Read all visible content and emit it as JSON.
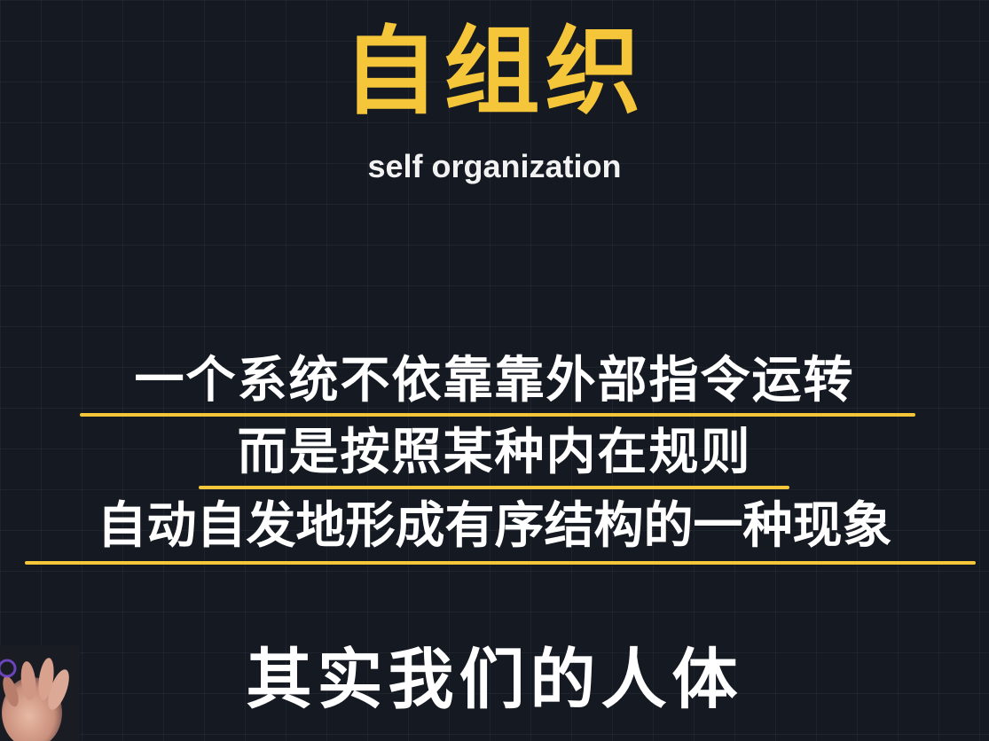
{
  "title": "自组织",
  "subtitle": "self organization",
  "definition_lines": [
    "一个系统不依靠靠外部指令运转",
    "而是按照某种内在规则",
    "自动自发地形成有序结构的一种现象"
  ],
  "footer_caption": "其实我们的人体",
  "colors": {
    "background": "#151a22",
    "accent": "#f5c63a",
    "text": "#ffffff"
  }
}
